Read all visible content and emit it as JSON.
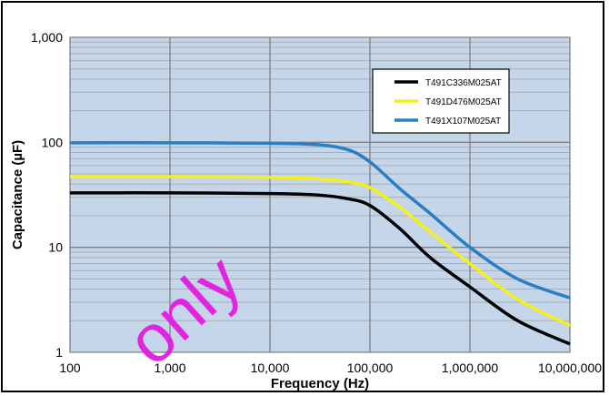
{
  "chart_data": {
    "type": "line",
    "xlabel": "Frequency (Hz)",
    "ylabel": "Capacitance (µF)",
    "x_scale": "log",
    "y_scale": "log",
    "xlim": [
      100,
      10000000
    ],
    "ylim": [
      1,
      1000
    ],
    "x_ticks": [
      "100",
      "1,000",
      "10,000",
      "100,000",
      "1,000,000",
      "10,000,000"
    ],
    "y_ticks": [
      "1",
      "10",
      "100",
      "1,000"
    ],
    "grid": true,
    "legend_position": "top-right",
    "series": [
      {
        "name": "T491C336M025AT",
        "color": "#000000",
        "x": [
          100,
          1000,
          10000,
          30000,
          60000,
          100000,
          200000,
          400000,
          1000000,
          3000000,
          10000000
        ],
        "y": [
          33,
          33,
          32.5,
          31.5,
          29,
          25,
          15,
          8,
          4.2,
          2.0,
          1.2
        ]
      },
      {
        "name": "T491D476M025AT",
        "color": "#f5ef1a",
        "x": [
          100,
          1000,
          10000,
          30000,
          60000,
          100000,
          200000,
          400000,
          1000000,
          3000000,
          10000000
        ],
        "y": [
          47,
          47,
          46.5,
          45,
          42,
          37,
          24,
          14,
          7,
          3.2,
          1.8
        ]
      },
      {
        "name": "T491X107M025AT",
        "color": "#2a7fc4",
        "x": [
          100,
          1000,
          10000,
          30000,
          60000,
          100000,
          200000,
          400000,
          1000000,
          3000000,
          10000000
        ],
        "y": [
          99,
          99,
          98,
          95,
          85,
          65,
          36,
          21,
          10,
          5,
          3.3
        ]
      }
    ]
  },
  "watermark": "only",
  "colors": {
    "plot_background": "#c5d6ea",
    "major_grid": "#808080",
    "minor_grid": "#a9aeb4"
  }
}
